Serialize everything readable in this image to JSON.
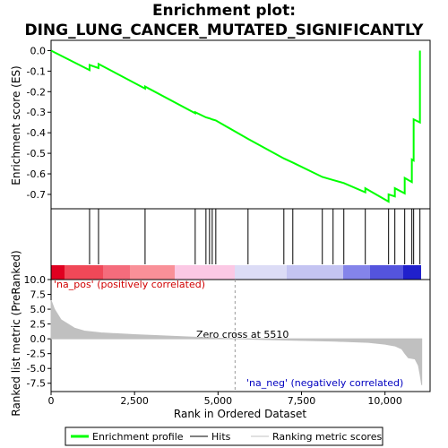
{
  "chart_data": {
    "type": "gsea",
    "title": [
      "Enrichment plot:",
      "DING_LUNG_CANCER_MUTATED_SIGNIFICANTLY"
    ],
    "x_label": "Rank in Ordered Dataset",
    "xlim": [
      0,
      11350
    ],
    "xticks": [
      0,
      {
        "value": 2500,
        "label": "2,500"
      },
      {
        "value": 5000,
        "label": "5,000"
      },
      {
        "value": 7500,
        "label": "7,500"
      },
      {
        "value": 10000,
        "label": "10,000"
      }
    ],
    "profile": {
      "name": "Enrichment profile",
      "color": "#00ff00",
      "ylabel": "Enrichment score (ES)",
      "ylim": [
        -0.77,
        0.05
      ],
      "yticks": [
        {
          "value": 0,
          "label": "0.0"
        },
        -0.1,
        -0.2,
        -0.3,
        -0.4,
        -0.5,
        -0.6,
        -0.7
      ],
      "x": [
        0,
        1153,
        1153,
        1421,
        1421,
        2815,
        2815,
        4316,
        4316,
        4638,
        4745,
        4826,
        4933,
        5898,
        6971,
        7239,
        8123,
        8445,
        8767,
        9410,
        9410,
        10107,
        10107,
        10295,
        10295,
        10590,
        10590,
        10804,
        10804,
        10858,
        10858,
        11046,
        11046,
        11046
      ],
      "values": [
        0,
        -0.095,
        -0.07,
        -0.085,
        -0.065,
        -0.185,
        -0.175,
        -0.305,
        -0.3,
        -0.325,
        -0.33,
        -0.335,
        -0.34,
        -0.43,
        -0.525,
        -0.545,
        -0.615,
        -0.63,
        -0.645,
        -0.69,
        -0.67,
        -0.735,
        -0.7,
        -0.71,
        -0.67,
        -0.695,
        -0.62,
        -0.64,
        -0.53,
        -0.535,
        -0.335,
        -0.35,
        -0.17,
        0.0
      ]
    },
    "hits": {
      "name": "Hits",
      "color": "#000000",
      "x": [
        1153,
        1421,
        2815,
        4316,
        4638,
        4745,
        4826,
        4933,
        5898,
        6971,
        7239,
        8123,
        8445,
        8767,
        9410,
        10107,
        10295,
        10590,
        10804,
        10858,
        11046
      ]
    },
    "metric": {
      "name": "Ranking metric scores",
      "color": "#c0c0c0",
      "ylabel": "Ranked list metric (PreRanked)",
      "ylim": [
        -8.9,
        10
      ],
      "yticks": [
        {
          "value": 10,
          "label": "10.0"
        },
        7.5,
        {
          "value": 5,
          "label": "5.0"
        },
        2.5,
        {
          "value": 0,
          "label": "0.0"
        },
        -2.5,
        {
          "value": -5,
          "label": "-5.0"
        },
        -7.5
      ],
      "x": [
        0,
        100,
        300,
        500,
        700,
        1000,
        1500,
        2500,
        4000,
        5510,
        7000,
        8500,
        9500,
        10000,
        10300,
        10500,
        10600,
        10700,
        10900,
        11000,
        11050,
        11100
      ],
      "values": [
        6.5,
        5,
        3.2,
        2.5,
        1.8,
        1.3,
        1.0,
        0.7,
        0.35,
        0,
        -0.2,
        -0.4,
        -0.6,
        -0.9,
        -1.2,
        -1.7,
        -2.5,
        -3.2,
        -3.4,
        -4.5,
        -6,
        -7.8
      ],
      "zero_cross": 5510,
      "zero_cross_label": "Zero cross at 5510",
      "pos_label": "'na_pos' (positively correlated)",
      "neg_label": "'na_neg' (negatively correlated)"
    }
  }
}
